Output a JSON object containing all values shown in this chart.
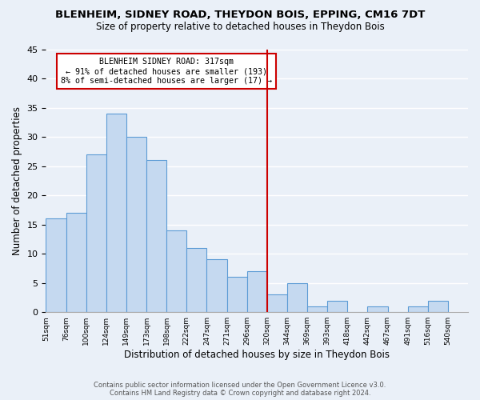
{
  "title": "BLENHEIM, SIDNEY ROAD, THEYDON BOIS, EPPING, CM16 7DT",
  "subtitle": "Size of property relative to detached houses in Theydon Bois",
  "xlabel": "Distribution of detached houses by size in Theydon Bois",
  "ylabel": "Number of detached properties",
  "bin_labels": [
    "51sqm",
    "76sqm",
    "100sqm",
    "124sqm",
    "149sqm",
    "173sqm",
    "198sqm",
    "222sqm",
    "247sqm",
    "271sqm",
    "296sqm",
    "320sqm",
    "344sqm",
    "369sqm",
    "393sqm",
    "418sqm",
    "442sqm",
    "467sqm",
    "491sqm",
    "516sqm",
    "540sqm"
  ],
  "bar_values": [
    16,
    17,
    27,
    34,
    30,
    26,
    14,
    11,
    9,
    6,
    7,
    3,
    5,
    1,
    2,
    0,
    1,
    0,
    1,
    2
  ],
  "bar_color": "#c5d9f0",
  "bar_edge_color": "#5b9bd5",
  "vline_color": "#cc0000",
  "annotation_title": "BLENHEIM SIDNEY ROAD: 317sqm",
  "annotation_line1": "← 91% of detached houses are smaller (193)",
  "annotation_line2": "8% of semi-detached houses are larger (17) →",
  "annotation_box_color": "#cc0000",
  "ylim": [
    0,
    45
  ],
  "yticks": [
    0,
    5,
    10,
    15,
    20,
    25,
    30,
    35,
    40,
    45
  ],
  "footer1": "Contains HM Land Registry data © Crown copyright and database right 2024.",
  "footer2": "Contains public sector information licensed under the Open Government Licence v3.0.",
  "bg_color": "#eaf0f8",
  "plot_bg_color": "#eaf0f8",
  "grid_color": "#ffffff"
}
